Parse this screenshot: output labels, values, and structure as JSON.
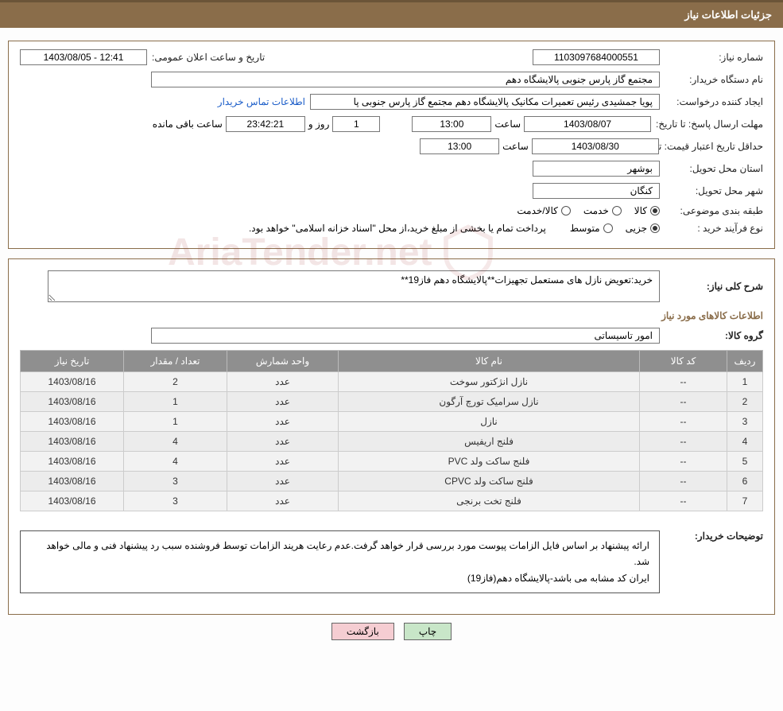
{
  "header": {
    "title": "جزئیات اطلاعات نیاز"
  },
  "fields": {
    "need_no_label": "شماره نیاز:",
    "need_no": "1103097684000551",
    "announce_label": "تاریخ و ساعت اعلان عمومی:",
    "announce": "12:41 - 1403/08/05",
    "buyer_org_label": "نام دستگاه خریدار:",
    "buyer_org": "مجتمع گاز پارس جنوبی  پالایشگاه دهم",
    "requester_label": "ایجاد کننده درخواست:",
    "requester": "پویا جمشیدی رئیس تعمیرات مکانیک پالایشگاه دهم  مجتمع گاز پارس جنوبی  پا",
    "contact_link": "اطلاعات تماس خریدار",
    "deadline_label": "مهلت ارسال پاسخ: تا تاریخ:",
    "deadline_date": "1403/08/07",
    "time_label": "ساعت",
    "deadline_time": "13:00",
    "days_remain": "1",
    "days_word": "روز و",
    "countdown": "23:42:21",
    "remain_word": "ساعت باقی مانده",
    "validity_label": "حداقل تاریخ اعتبار قیمت: تا تاریخ:",
    "validity_date": "1403/08/30",
    "validity_time": "13:00",
    "province_label": "استان محل تحویل:",
    "province": "بوشهر",
    "city_label": "شهر محل تحویل:",
    "city": "کنگان",
    "category_label": "طبقه بندی موضوعی:",
    "cat1": "کالا",
    "cat2": "خدمت",
    "cat3": "کالا/خدمت",
    "process_label": "نوع فرآیند خرید :",
    "proc1": "جزیی",
    "proc2": "متوسط",
    "process_note": "پرداخت تمام یا بخشی از مبلغ خرید،از محل \"اسناد خزانه اسلامی\" خواهد بود.",
    "desc_label": "شرح کلی نیاز:",
    "desc": "خرید:تعویض نازل های مستعمل تجهیزات**پالایشگاه دهم فاز19**",
    "items_title": "اطلاعات کالاهای مورد نیاز",
    "group_label": "گروه کالا:",
    "group": "امور تاسیساتی",
    "buyer_notes_label": "توضیحات خریدار:",
    "buyer_notes_1": "ارائه پیشنهاد بر اساس فایل الزامات پیوست مورد بررسی قرار خواهد گرفت.عدم رعایت هریند الزامات توسط فروشنده سبب رد پیشنهاد فنی و مالی خواهد شد.",
    "buyer_notes_2": "ایران کد مشابه می باشد-پالایشگاه دهم(فاز19)"
  },
  "table": {
    "headers": {
      "idx": "ردیف",
      "code": "کد کالا",
      "name": "نام کالا",
      "unit": "واحد شمارش",
      "qty": "تعداد / مقدار",
      "date": "تاریخ نیاز"
    },
    "rows": [
      {
        "idx": "1",
        "code": "--",
        "name": "نازل انژکتور سوخت",
        "unit": "عدد",
        "qty": "2",
        "date": "1403/08/16"
      },
      {
        "idx": "2",
        "code": "--",
        "name": "نازل سرامیک تورچ آرگون",
        "unit": "عدد",
        "qty": "1",
        "date": "1403/08/16"
      },
      {
        "idx": "3",
        "code": "--",
        "name": "نازل",
        "unit": "عدد",
        "qty": "1",
        "date": "1403/08/16"
      },
      {
        "idx": "4",
        "code": "--",
        "name": "فلنج اریفیس",
        "unit": "عدد",
        "qty": "4",
        "date": "1403/08/16"
      },
      {
        "idx": "5",
        "code": "--",
        "name": "فلنج ساکت ولد PVC",
        "unit": "عدد",
        "qty": "4",
        "date": "1403/08/16"
      },
      {
        "idx": "6",
        "code": "--",
        "name": "فلنج ساکت ولد CPVC",
        "unit": "عدد",
        "qty": "3",
        "date": "1403/08/16"
      },
      {
        "idx": "7",
        "code": "--",
        "name": "فلنج تخت برنجی",
        "unit": "عدد",
        "qty": "3",
        "date": "1403/08/16"
      }
    ]
  },
  "buttons": {
    "print": "چاپ",
    "back": "بازگشت"
  },
  "colors": {
    "header_bg": "#8a6d4a",
    "th_bg": "#8f8f8f",
    "td_bg": "#f2f2f2",
    "btn_print": "#c8e6c8",
    "btn_back": "#f5cdd2",
    "link": "#1a5cc8"
  },
  "watermark": "AriaTender.net"
}
